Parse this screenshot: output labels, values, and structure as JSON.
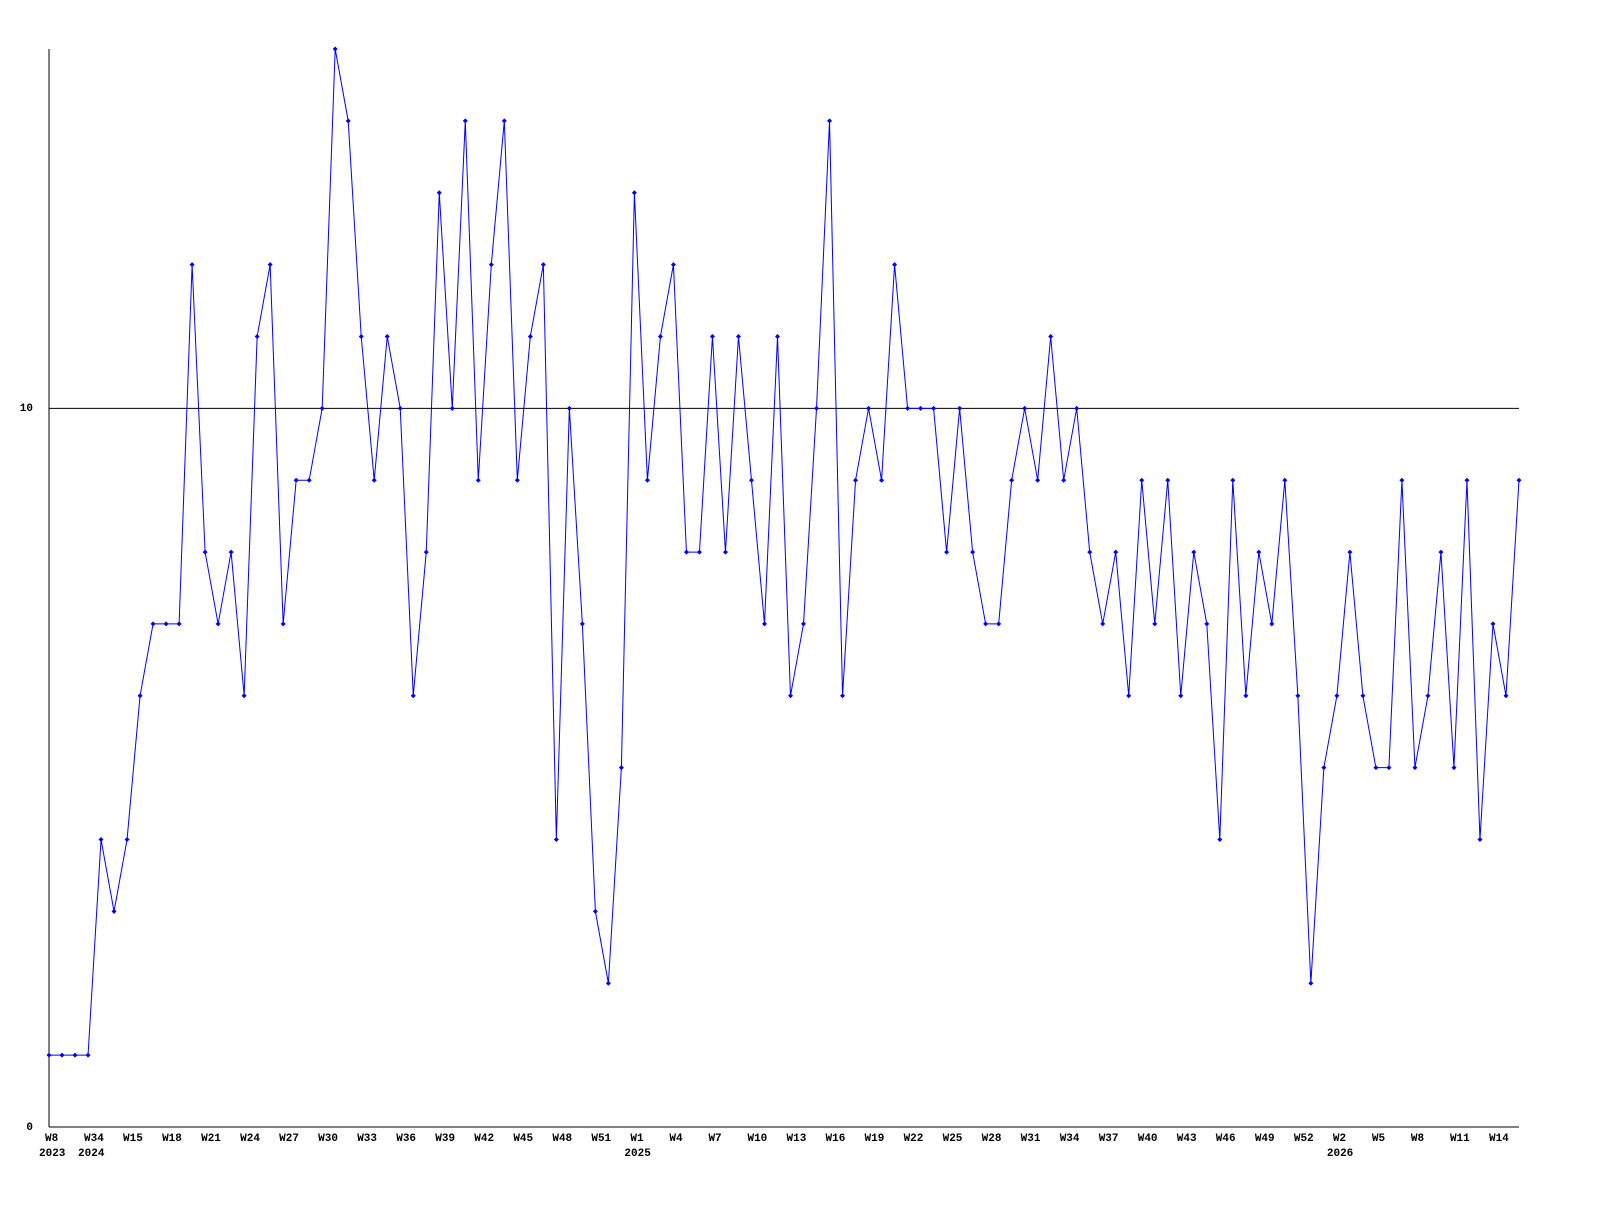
{
  "chart_data": {
    "type": "line",
    "categories": [
      "W8",
      null,
      null,
      "W34",
      null,
      null,
      "W15",
      null,
      null,
      "W18",
      null,
      null,
      "W21",
      null,
      null,
      "W24",
      null,
      null,
      "W27",
      null,
      null,
      "W30",
      null,
      null,
      "W33",
      null,
      null,
      "W36",
      null,
      null,
      "W39",
      null,
      null,
      "W42",
      null,
      null,
      "W45",
      null,
      null,
      "W48",
      null,
      null,
      "W51",
      null,
      null,
      "W1",
      null,
      null,
      "W4",
      null,
      null,
      "W7",
      null,
      null,
      "W10",
      null,
      null,
      "W13",
      null,
      null,
      "W16",
      null,
      null,
      "W19",
      null,
      null,
      "W22",
      null,
      null,
      "W25",
      null,
      null,
      "W28",
      null,
      null,
      "W31",
      null,
      null,
      "W34",
      null,
      null,
      "W37",
      null,
      null,
      "W40",
      null,
      null,
      "W43",
      null,
      null,
      "W46",
      null,
      null,
      "W49",
      null,
      null,
      "W52",
      null,
      null,
      "W2",
      null,
      null,
      "W5",
      null,
      null,
      "W8",
      null,
      null,
      "W11",
      null,
      null,
      "W14",
      null,
      null
    ],
    "years": [
      "2023",
      null,
      null,
      "2024",
      null,
      null,
      null,
      null,
      null,
      null,
      null,
      null,
      null,
      null,
      null,
      null,
      null,
      null,
      null,
      null,
      null,
      null,
      null,
      null,
      null,
      null,
      null,
      null,
      null,
      null,
      null,
      null,
      null,
      null,
      null,
      null,
      null,
      null,
      null,
      null,
      null,
      null,
      null,
      null,
      null,
      "2025",
      null,
      null,
      null,
      null,
      null,
      null,
      null,
      null,
      null,
      null,
      null,
      null,
      null,
      null,
      null,
      null,
      null,
      null,
      null,
      null,
      null,
      null,
      null,
      null,
      null,
      null,
      null,
      null,
      null,
      null,
      null,
      null,
      null,
      null,
      null,
      null,
      null,
      null,
      null,
      null,
      null,
      null,
      null,
      null,
      null,
      null,
      null,
      null,
      null,
      null,
      null,
      null,
      null,
      "2026",
      null,
      null,
      null,
      null,
      null,
      null,
      null,
      null,
      null,
      null,
      null,
      null,
      null,
      null
    ],
    "series": [
      {
        "color": "#0000ff",
        "values": [
          1,
          1,
          1,
          1,
          4,
          3,
          4,
          6,
          7,
          7,
          7,
          12,
          8,
          7,
          8,
          6,
          11,
          12,
          7,
          9,
          9,
          10,
          15,
          14,
          11,
          9,
          11,
          10,
          6,
          8,
          13,
          10,
          14,
          9,
          12,
          14,
          9,
          11,
          12,
          4,
          10,
          7,
          3,
          2,
          5,
          13,
          9,
          11,
          12,
          8,
          8,
          11,
          8,
          11,
          9,
          7,
          11,
          6,
          7,
          10,
          14,
          6,
          9,
          10,
          9,
          12,
          10,
          10,
          10,
          8,
          10,
          8,
          7,
          7,
          9,
          10,
          9,
          11,
          9,
          10,
          8,
          7,
          8,
          6,
          9,
          7,
          9,
          6,
          8,
          7,
          4,
          9,
          6,
          8,
          7,
          9,
          6,
          2,
          5,
          6,
          8,
          6,
          5,
          5,
          9,
          5,
          6,
          8,
          5,
          9,
          4,
          7,
          6,
          9
        ]
      }
    ],
    "ylim": [
      0,
      15
    ],
    "yticks": [
      0,
      10
    ],
    "grid": true
  }
}
